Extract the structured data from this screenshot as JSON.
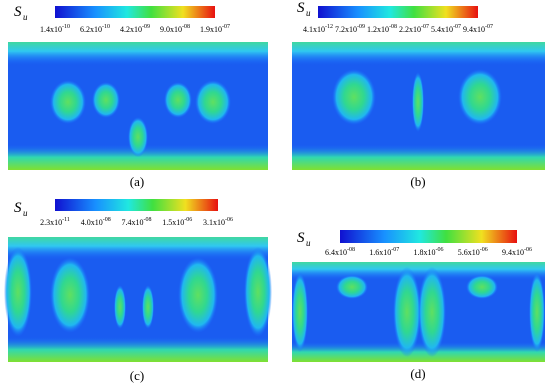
{
  "panels": [
    {
      "label": "(a)",
      "symbol": "S",
      "subscript": "u",
      "colorbar_ticks": [
        {
          "base": "1.4x10",
          "exp": "-10"
        },
        {
          "base": "6.2x10",
          "exp": "-10"
        },
        {
          "base": "4.2x10",
          "exp": "-09"
        },
        {
          "base": "9.0x10",
          "exp": "-08"
        },
        {
          "base": "1.9x10",
          "exp": "-07"
        }
      ]
    },
    {
      "label": "(b)",
      "symbol": "S",
      "subscript": "u",
      "colorbar_ticks": [
        {
          "base": "4.1x10",
          "exp": "-12"
        },
        {
          "base": "7.2x10",
          "exp": "-09"
        },
        {
          "base": "1.2x10",
          "exp": "-08"
        },
        {
          "base": "2.2x10",
          "exp": "-07"
        },
        {
          "base": "5.4x10",
          "exp": "-07"
        },
        {
          "base": "9.4x10",
          "exp": "-07"
        }
      ]
    },
    {
      "label": "(c)",
      "symbol": "S",
      "subscript": "u",
      "colorbar_ticks": [
        {
          "base": "2.3x10",
          "exp": "-11"
        },
        {
          "base": "4.0x10",
          "exp": "-08"
        },
        {
          "base": "7.4x10",
          "exp": "-08"
        },
        {
          "base": "1.5x10",
          "exp": "-06"
        },
        {
          "base": "3.1x10",
          "exp": "-06"
        }
      ]
    },
    {
      "label": "(d)",
      "symbol": "S",
      "subscript": "u",
      "colorbar_ticks": [
        {
          "base": "6.4x10",
          "exp": "-08"
        },
        {
          "base": "1.6x10",
          "exp": "-07"
        },
        {
          "base": "1.8x10",
          "exp": "-06"
        },
        {
          "base": "5.6x10",
          "exp": "-06"
        },
        {
          "base": "9.4x10",
          "exp": "-06"
        }
      ]
    }
  ]
}
